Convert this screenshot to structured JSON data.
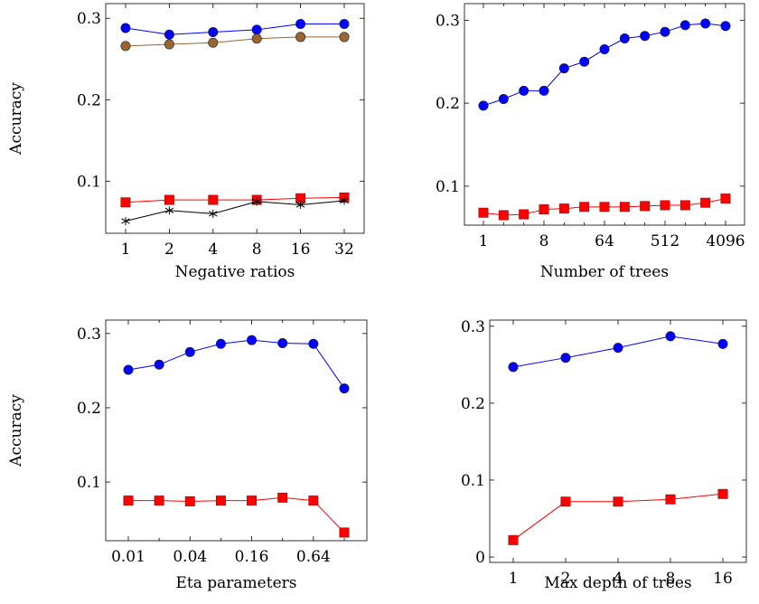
{
  "chart_data": [
    {
      "type": "line",
      "xlabel": "Negative ratios",
      "ylabel": "Accuracy",
      "x_scale": "log2",
      "categories": [
        "1",
        "2",
        "4",
        "8",
        "16",
        "32"
      ],
      "x": [
        1,
        2,
        4,
        8,
        16,
        32
      ],
      "yticks": [
        "0.1",
        "0.2",
        "0.3"
      ],
      "ylim": [
        0.036,
        0.318
      ],
      "grid": false,
      "series": [
        {
          "color": "#0000ff",
          "marker": "circle",
          "values": [
            0.288,
            0.28,
            0.283,
            0.286,
            0.293,
            0.293
          ]
        },
        {
          "color": "#996633",
          "marker": "circle",
          "values": [
            0.266,
            0.268,
            0.27,
            0.275,
            0.277,
            0.277
          ]
        },
        {
          "color": "#ff0000",
          "marker": "square",
          "values": [
            0.074,
            0.077,
            0.077,
            0.077,
            0.079,
            0.08
          ]
        },
        {
          "color": "#000000",
          "marker": "star",
          "values": [
            0.051,
            0.064,
            0.06,
            0.075,
            0.071,
            0.076
          ]
        }
      ]
    },
    {
      "type": "line",
      "xlabel": "Number of trees",
      "ylabel": "",
      "x_scale": "log2",
      "x": [
        1,
        2,
        4,
        8,
        16,
        32,
        64,
        128,
        256,
        512,
        1024,
        2048,
        4096
      ],
      "xticks": [
        "1",
        "8",
        "64",
        "512",
        "4096"
      ],
      "yticks": [
        "0.1",
        "0.2",
        "0.3"
      ],
      "ylim": [
        0.053,
        0.32
      ],
      "grid": false,
      "series": [
        {
          "color": "#0000ff",
          "marker": "circle",
          "values": [
            0.197,
            0.205,
            0.215,
            0.215,
            0.242,
            0.25,
            0.265,
            0.278,
            0.281,
            0.286,
            0.294,
            0.296,
            0.293
          ]
        },
        {
          "color": "#ff0000",
          "marker": "square",
          "values": [
            0.068,
            0.065,
            0.066,
            0.072,
            0.073,
            0.075,
            0.075,
            0.075,
            0.076,
            0.077,
            0.077,
            0.08,
            0.085
          ]
        }
      ]
    },
    {
      "type": "line",
      "xlabel": "Eta parameters",
      "ylabel": "Accuracy",
      "x_scale": "log2",
      "x": [
        0.01,
        0.02,
        0.04,
        0.08,
        0.16,
        0.32,
        0.64,
        1.28
      ],
      "xticks": [
        "0.01",
        "0.04",
        "0.16",
        "0.64"
      ],
      "yticks": [
        "0.1",
        "0.2",
        "0.3"
      ],
      "ylim": [
        0.021,
        0.318
      ],
      "grid": false,
      "series": [
        {
          "color": "#0000ff",
          "marker": "circle",
          "values": [
            0.251,
            0.258,
            0.275,
            0.286,
            0.291,
            0.287,
            0.286,
            0.226
          ]
        },
        {
          "color": "#ff0000",
          "marker": "square",
          "values": [
            0.075,
            0.075,
            0.074,
            0.075,
            0.075,
            0.079,
            0.075,
            0.032
          ]
        }
      ]
    },
    {
      "type": "line",
      "xlabel": "Max depth of trees",
      "ylabel": "",
      "x_scale": "log2",
      "x": [
        1,
        2,
        4,
        8,
        16
      ],
      "xticks": [
        "1",
        "2",
        "4",
        "8",
        "16"
      ],
      "yticks": [
        "0",
        "0.1",
        "0.2",
        "0.3"
      ],
      "ylim": [
        -0.007,
        0.308
      ],
      "grid": false,
      "series": [
        {
          "color": "#0000ff",
          "marker": "circle",
          "values": [
            0.247,
            0.259,
            0.272,
            0.287,
            0.277
          ]
        },
        {
          "color": "#ff0000",
          "marker": "square",
          "values": [
            0.022,
            0.072,
            0.072,
            0.075,
            0.082
          ]
        }
      ]
    }
  ]
}
